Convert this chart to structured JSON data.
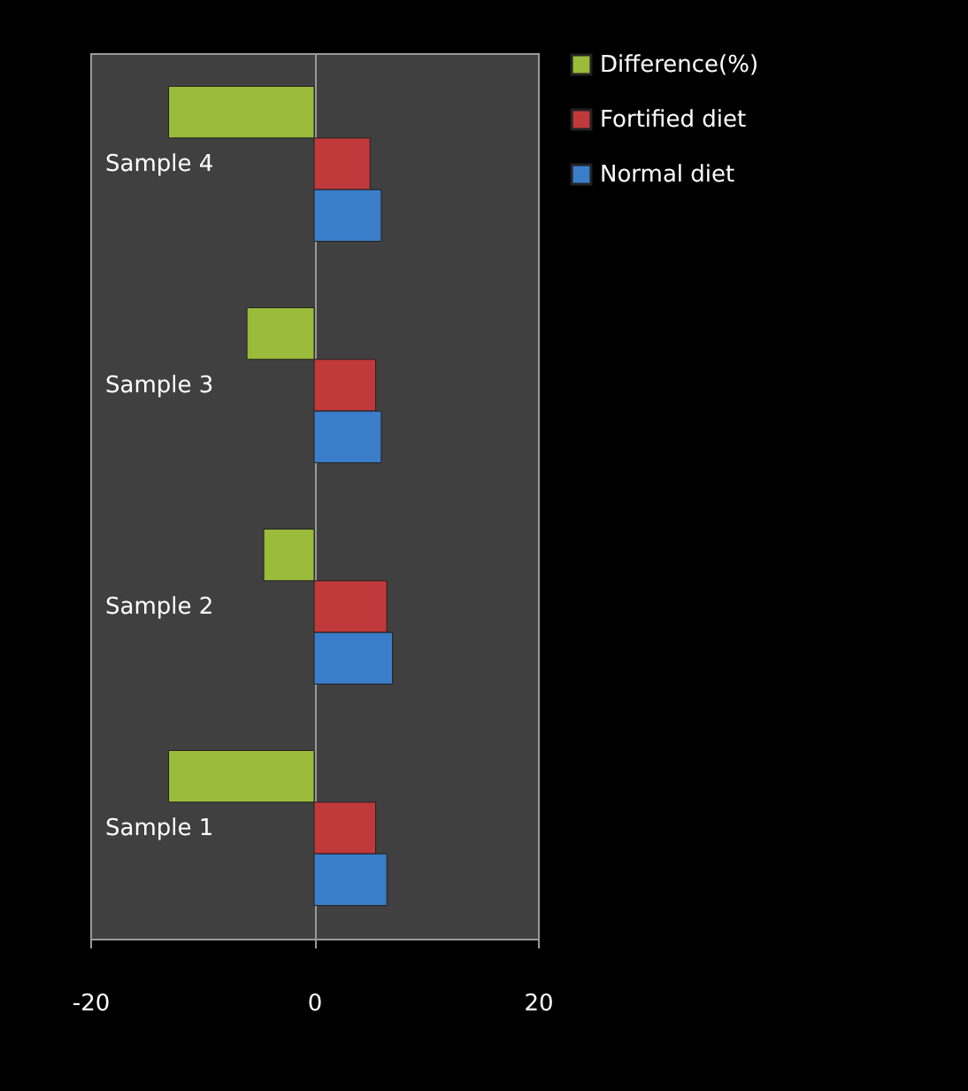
{
  "chart_data": {
    "type": "bar",
    "orientation": "horizontal",
    "categories": [
      "Sample 4",
      "Sample 3",
      "Sample 2",
      "Sample 1"
    ],
    "series": [
      {
        "name": "Difference(%)",
        "color": "#9bbb3b",
        "values": [
          -13,
          -6,
          -4.5,
          -13
        ]
      },
      {
        "name": "Fortified diet",
        "color": "#c0393b",
        "values": [
          5,
          5.5,
          6.5,
          5.5
        ]
      },
      {
        "name": "Normal diet",
        "color": "#3a7dc9",
        "values": [
          6,
          6,
          7,
          6.5
        ]
      }
    ],
    "xlim": [
      -20,
      20
    ],
    "xticks": [
      -20,
      0,
      20
    ],
    "grid": "x",
    "legend": "right"
  }
}
